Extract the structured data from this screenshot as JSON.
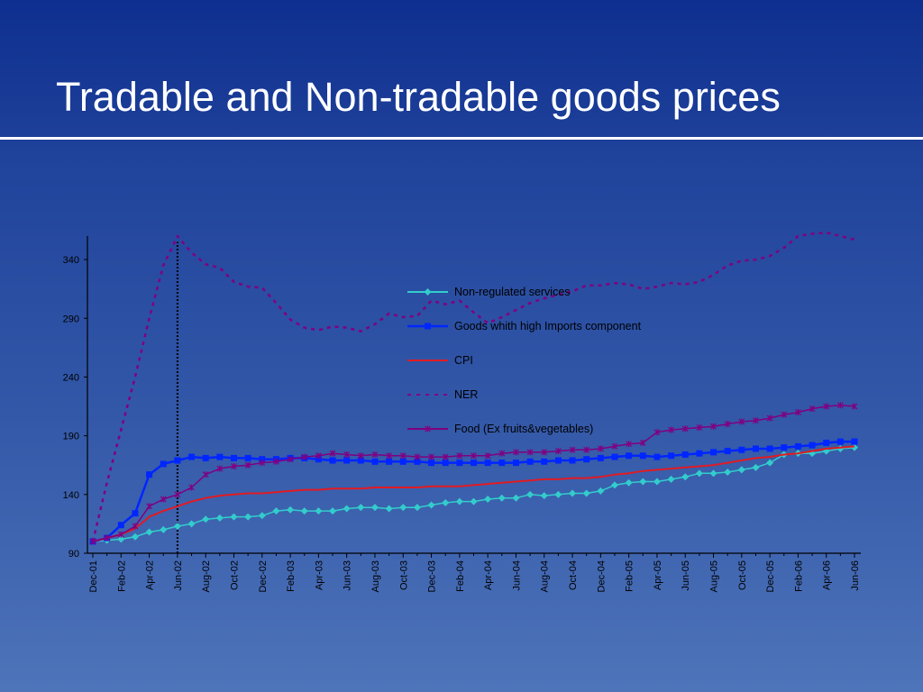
{
  "slide": {
    "title": "Tradable and Non-tradable goods prices"
  },
  "chart_data": {
    "type": "line",
    "title": "",
    "xlabel": "",
    "ylabel": "",
    "ylim": [
      90,
      360
    ],
    "y_ticks": [
      90,
      140,
      190,
      240,
      290,
      340
    ],
    "x_tick_labels": [
      "Dec-01",
      "Feb-02",
      "Apr-02",
      "Jun-02",
      "Aug-02",
      "Oct-02",
      "Dec-02",
      "Feb-03",
      "Apr-03",
      "Jun-03",
      "Aug-03",
      "Oct-03",
      "Dec-03",
      "Feb-04",
      "Apr-04",
      "Jun-04",
      "Aug-04",
      "Oct-04",
      "Dec-04",
      "Feb-05",
      "Apr-05",
      "Jun-05",
      "Aug-05",
      "Oct-05",
      "Dec-05",
      "Feb-06",
      "Apr-06",
      "Jun-06"
    ],
    "x": [
      "Dec-01",
      "Jan-02",
      "Feb-02",
      "Mar-02",
      "Apr-02",
      "May-02",
      "Jun-02",
      "Jul-02",
      "Aug-02",
      "Sep-02",
      "Oct-02",
      "Nov-02",
      "Dec-02",
      "Jan-03",
      "Feb-03",
      "Mar-03",
      "Apr-03",
      "May-03",
      "Jun-03",
      "Jul-03",
      "Aug-03",
      "Sep-03",
      "Oct-03",
      "Nov-03",
      "Dec-03",
      "Jan-04",
      "Feb-04",
      "Mar-04",
      "Apr-04",
      "May-04",
      "Jun-04",
      "Jul-04",
      "Aug-04",
      "Sep-04",
      "Oct-04",
      "Nov-04",
      "Dec-04",
      "Jan-05",
      "Feb-05",
      "Mar-05",
      "Apr-05",
      "May-05",
      "Jun-05",
      "Jul-05",
      "Aug-05",
      "Sep-05",
      "Oct-05",
      "Nov-05",
      "Dec-05",
      "Jan-06",
      "Feb-06",
      "Mar-06",
      "Apr-06",
      "May-06",
      "Jun-06"
    ],
    "vertical_marker": "Jun-02",
    "legend_position": "center-right",
    "series": [
      {
        "name": "Non-regulated services",
        "color": "#33cccc",
        "style": "solid-diamond",
        "values": [
          100,
          101,
          102,
          104,
          108,
          110,
          113,
          115,
          119,
          120,
          121,
          121,
          122,
          126,
          127,
          126,
          126,
          126,
          128,
          129,
          129,
          128,
          129,
          129,
          131,
          133,
          134,
          134,
          136,
          137,
          137,
          140,
          139,
          140,
          141,
          141,
          143,
          148,
          150,
          151,
          151,
          153,
          155,
          158,
          158,
          159,
          161,
          163,
          167,
          174,
          175,
          175,
          177,
          179,
          180
        ]
      },
      {
        "name": "Goods whith high Imports component",
        "color": "#0026ff",
        "style": "solid-square",
        "values": [
          100,
          103,
          114,
          124,
          157,
          166,
          169,
          172,
          171,
          172,
          171,
          171,
          170,
          170,
          171,
          171,
          170,
          169,
          169,
          169,
          168,
          168,
          168,
          168,
          167,
          167,
          167,
          167,
          167,
          167,
          167,
          168,
          168,
          169,
          169,
          170,
          171,
          172,
          173,
          173,
          172,
          173,
          174,
          175,
          176,
          177,
          178,
          179,
          179,
          180,
          181,
          182,
          184,
          185,
          185
        ]
      },
      {
        "name": "CPI",
        "color": "#e11b22",
        "style": "solid",
        "values": [
          100,
          103,
          106,
          111,
          121,
          126,
          130,
          134,
          137,
          139,
          140,
          141,
          141,
          142,
          143,
          144,
          144,
          145,
          145,
          145,
          146,
          146,
          146,
          146,
          147,
          147,
          147,
          148,
          149,
          150,
          151,
          152,
          153,
          153,
          154,
          154,
          155,
          157,
          158,
          160,
          161,
          162,
          163,
          164,
          165,
          167,
          169,
          171,
          172,
          174,
          175,
          177,
          179,
          180,
          181
        ]
      },
      {
        "name": "NER",
        "color": "#800080",
        "style": "dotted",
        "values": [
          100,
          150,
          195,
          240,
          290,
          335,
          360,
          346,
          336,
          333,
          321,
          317,
          316,
          303,
          289,
          282,
          280,
          283,
          282,
          279,
          285,
          294,
          291,
          292,
          305,
          302,
          305,
          295,
          286,
          291,
          297,
          303,
          307,
          310,
          313,
          318,
          318,
          320,
          319,
          315,
          317,
          320,
          319,
          321,
          327,
          335,
          339,
          340,
          343,
          350,
          360,
          362,
          363,
          360,
          357
        ]
      },
      {
        "name": "Food (Ex fruits&vegetables)",
        "color": "#800080",
        "style": "solid-star",
        "values": [
          100,
          103,
          106,
          113,
          130,
          136,
          140,
          146,
          157,
          162,
          164,
          165,
          167,
          168,
          170,
          172,
          173,
          175,
          174,
          173,
          174,
          173,
          173,
          172,
          172,
          172,
          173,
          173,
          173,
          175,
          176,
          176,
          176,
          177,
          178,
          178,
          179,
          181,
          183,
          184,
          193,
          195,
          196,
          197,
          198,
          200,
          202,
          203,
          205,
          208,
          210,
          213,
          215,
          216,
          215
        ]
      }
    ]
  }
}
